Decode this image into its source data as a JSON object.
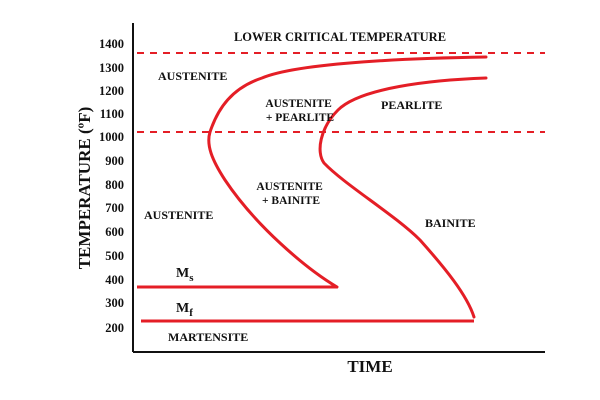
{
  "diagram": {
    "header": "LOWER CRITICAL TEMPERATURE",
    "y_axis_title": "TEMPERATURE (ºF)",
    "x_axis_title": "TIME",
    "y_ticks": [
      "1400",
      "1300",
      "1200",
      "1100",
      "1000",
      "900",
      "800",
      "700",
      "600",
      "500",
      "400",
      "300",
      "200"
    ],
    "regions": {
      "austenite_top": "AUSTENITE",
      "austenite_pearlite_line1": "AUSTENITE",
      "austenite_pearlite_line2": "+ PEARLITE",
      "pearlite": "PEARLITE",
      "austenite_bainite_line1": "AUSTENITE",
      "austenite_bainite_line2": "+ BAINITE",
      "austenite_left": "AUSTENITE",
      "bainite": "BAINITE",
      "martensite": "MARTENSITE"
    },
    "lines": {
      "ms_main": "M",
      "ms_sub": "s",
      "mf_main": "M",
      "mf_sub": "f"
    },
    "colors": {
      "curve": "#e41e26",
      "axis": "#111111",
      "text": "#111111"
    }
  }
}
